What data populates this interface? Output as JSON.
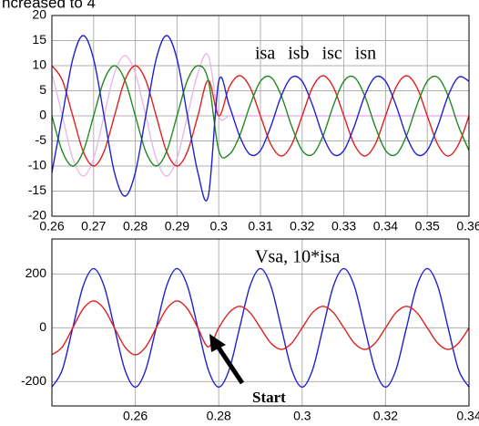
{
  "header": {
    "text": "ncreased to 4"
  },
  "chart_data": [
    {
      "type": "line",
      "x": [
        0.26,
        0.2625,
        0.265,
        0.2675,
        0.27,
        0.2725,
        0.275,
        0.2775,
        0.28,
        0.2825,
        0.285,
        0.2875,
        0.29,
        0.2925,
        0.295,
        0.2975,
        0.3,
        0.3025,
        0.305,
        0.3075,
        0.31,
        0.3125,
        0.315,
        0.3175,
        0.32,
        0.3225,
        0.325,
        0.3275,
        0.33,
        0.3325,
        0.335,
        0.3375,
        0.34,
        0.3425,
        0.345,
        0.3475,
        0.35,
        0.3525,
        0.355,
        0.3575,
        0.36
      ],
      "series": [
        {
          "name": "isn",
          "color": "#e8b8e8",
          "values": [
            8.5,
            0,
            -8.5,
            -12,
            -8.5,
            0,
            8.5,
            12,
            8.5,
            0,
            -8.5,
            -12,
            -8.5,
            0,
            8.5,
            12,
            0,
            0,
            0,
            0,
            0,
            0,
            0,
            0,
            0,
            0,
            0,
            0,
            0,
            0,
            0,
            0,
            0,
            0,
            0,
            0,
            0,
            0,
            0,
            0,
            0
          ]
        },
        {
          "name": "isa",
          "color": "#e02020",
          "values": [
            10,
            7.1,
            0,
            -7.1,
            -10,
            -7.1,
            0,
            7.1,
            10,
            7.1,
            0,
            -7.1,
            -10,
            -7.1,
            0,
            7.1,
            0,
            5.7,
            8,
            5.7,
            0,
            -5.7,
            -8,
            -5.7,
            0,
            5.7,
            8,
            5.7,
            0,
            -5.7,
            -8,
            -5.7,
            0,
            5.7,
            8,
            5.7,
            0,
            -5.7,
            -8,
            -5.7,
            0
          ]
        },
        {
          "name": "isb",
          "color": "#208a20",
          "values": [
            0,
            -7.1,
            -10,
            -7.1,
            0,
            7.1,
            10,
            7.1,
            0,
            -7.1,
            -10,
            -7.1,
            0,
            7.1,
            10,
            7.1,
            -6.9,
            -7.7,
            -4,
            2.1,
            6.9,
            7.7,
            4,
            -2.1,
            -6.9,
            -7.7,
            -4,
            2.1,
            6.9,
            7.7,
            4,
            -2.1,
            -6.9,
            -7.7,
            -4,
            2.1,
            6.9,
            7.7,
            4,
            -2.1,
            -6.9
          ]
        },
        {
          "name": "isc",
          "color": "#2020d0",
          "values": [
            -11.3,
            0,
            11.3,
            16,
            11.3,
            0,
            -11.3,
            -16,
            -11.3,
            0,
            11.3,
            16,
            11.3,
            0,
            -11.3,
            -16,
            6.9,
            2.1,
            -4,
            -7.7,
            -6.9,
            -2.1,
            4,
            7.7,
            6.9,
            2.1,
            -4,
            -7.7,
            -6.9,
            -2.1,
            4,
            7.7,
            6.9,
            2.1,
            -4,
            -7.7,
            -6.9,
            -2.1,
            4,
            7.7,
            6.9
          ]
        }
      ],
      "xlim": [
        0.26,
        0.36
      ],
      "xticks": [
        0.26,
        0.27,
        0.28,
        0.29,
        0.3,
        0.31,
        0.32,
        0.33,
        0.34,
        0.35,
        0.36
      ],
      "ylim": [
        -20,
        20
      ],
      "yticks": [
        -20,
        -15,
        -10,
        -5,
        0,
        5,
        10,
        15,
        20
      ],
      "grid": true
    },
    {
      "type": "line",
      "x": [
        0.24,
        0.2425,
        0.245,
        0.2475,
        0.25,
        0.2525,
        0.255,
        0.2575,
        0.26,
        0.2625,
        0.265,
        0.2675,
        0.27,
        0.2725,
        0.275,
        0.2775,
        0.28,
        0.2825,
        0.285,
        0.2875,
        0.29,
        0.2925,
        0.295,
        0.2975,
        0.3,
        0.3025,
        0.305,
        0.3075,
        0.31,
        0.3125,
        0.315,
        0.3175,
        0.32,
        0.3225,
        0.325,
        0.3275,
        0.33,
        0.3325,
        0.335,
        0.3375,
        0.34
      ],
      "annotation": "Vsa, 10*isa",
      "arrow_label": "Start",
      "series": [
        {
          "color": "#2020d0",
          "values": [
            -220,
            -155.6,
            0,
            155.6,
            220,
            155.6,
            0,
            -155.6,
            -220,
            -155.6,
            0,
            155.6,
            220,
            155.6,
            0,
            -155.6,
            -220,
            -155.6,
            0,
            155.6,
            220,
            155.6,
            0,
            -155.6,
            -220,
            -155.6,
            0,
            155.6,
            220,
            155.6,
            0,
            -155.6,
            -220,
            -155.6,
            0,
            155.6,
            220,
            155.6,
            0,
            -155.6,
            -220
          ]
        },
        {
          "color": "#e02020",
          "values": [
            -100,
            -70.7,
            0,
            70.7,
            100,
            70.7,
            0,
            -70.7,
            -100,
            -70.7,
            0,
            70.7,
            100,
            70.7,
            0,
            -70.7,
            0,
            56.6,
            80,
            56.6,
            0,
            -56.6,
            -80,
            -56.6,
            0,
            56.6,
            80,
            56.6,
            0,
            -56.6,
            -80,
            -56.6,
            0,
            56.6,
            80,
            56.6,
            0,
            -56.6,
            -80,
            -56.6,
            0
          ]
        }
      ],
      "xlim": [
        0.24,
        0.34
      ],
      "xticks": [
        0.26,
        0.28,
        0.3,
        0.32,
        0.34
      ],
      "ylim": [
        -290,
        330
      ],
      "yticks": [
        -200,
        0,
        200
      ],
      "grid": true
    }
  ]
}
